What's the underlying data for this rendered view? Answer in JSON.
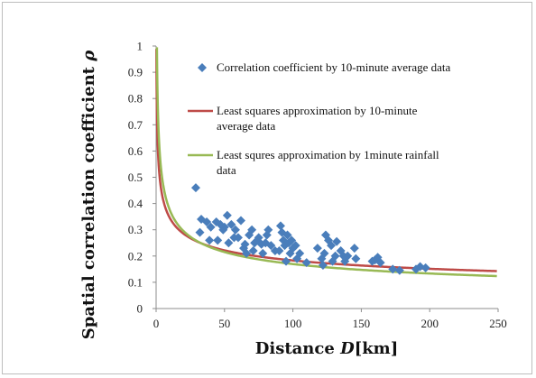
{
  "chart_data": {
    "type": "scatter",
    "xlabel_prefix": "Distance ",
    "xlabel_var": "D",
    "xlabel_unit": "[km]",
    "ylabel_prefix": "Spatial correlation coefficient ",
    "ylabel_var": "ρ",
    "xlim": [
      0,
      250
    ],
    "ylim": [
      0,
      1
    ],
    "xticks": [
      "0",
      "50",
      "100",
      "150",
      "200",
      "250"
    ],
    "yticks": [
      "0",
      "0.1",
      "0.2",
      "0.3",
      "0.4",
      "0.5",
      "0.6",
      "0.7",
      "0.8",
      "0.9",
      "1"
    ],
    "grid": false,
    "legend_position": "top-right",
    "legend": [
      {
        "marker": "diamond",
        "color": "#4a7ebb",
        "lines": [
          "Correlation coefficient by 10-minute average data"
        ]
      },
      {
        "marker": "line",
        "color": "#be4b48",
        "lines": [
          "Least squares approximation by 10-minute",
          "average data"
        ]
      },
      {
        "marker": "line",
        "color": "#98b954",
        "lines": [
          "Least squres approximation by 1minute rainfall",
          "data"
        ]
      }
    ],
    "scatter_series": {
      "name": "Correlation coefficient by 10-minute average data",
      "color": "#4a7ebb",
      "points": [
        [
          29,
          0.46
        ],
        [
          32,
          0.29
        ],
        [
          33,
          0.34
        ],
        [
          37,
          0.33
        ],
        [
          39,
          0.26
        ],
        [
          40,
          0.31
        ],
        [
          44,
          0.33
        ],
        [
          45,
          0.26
        ],
        [
          47,
          0.32
        ],
        [
          49,
          0.3
        ],
        [
          50,
          0.31
        ],
        [
          52,
          0.355
        ],
        [
          53,
          0.25
        ],
        [
          55,
          0.32
        ],
        [
          57,
          0.27
        ],
        [
          58,
          0.3
        ],
        [
          60,
          0.27
        ],
        [
          62,
          0.335
        ],
        [
          64,
          0.23
        ],
        [
          65,
          0.245
        ],
        [
          66,
          0.21
        ],
        [
          68,
          0.28
        ],
        [
          70,
          0.3
        ],
        [
          71,
          0.22
        ],
        [
          72,
          0.25
        ],
        [
          74,
          0.26
        ],
        [
          75,
          0.27
        ],
        [
          77,
          0.245
        ],
        [
          78,
          0.21
        ],
        [
          80,
          0.25
        ],
        [
          81,
          0.28
        ],
        [
          82,
          0.3
        ],
        [
          84,
          0.24
        ],
        [
          87,
          0.22
        ],
        [
          90,
          0.22
        ],
        [
          91,
          0.315
        ],
        [
          92,
          0.29
        ],
        [
          93,
          0.26
        ],
        [
          94,
          0.24
        ],
        [
          95,
          0.18
        ],
        [
          96,
          0.28
        ],
        [
          97,
          0.25
        ],
        [
          98,
          0.21
        ],
        [
          99,
          0.26
        ],
        [
          100,
          0.23
        ],
        [
          102,
          0.24
        ],
        [
          103,
          0.19
        ],
        [
          105,
          0.21
        ],
        [
          110,
          0.175
        ],
        [
          118,
          0.23
        ],
        [
          121,
          0.19
        ],
        [
          122,
          0.165
        ],
        [
          123,
          0.21
        ],
        [
          124,
          0.28
        ],
        [
          126,
          0.26
        ],
        [
          128,
          0.24
        ],
        [
          129,
          0.18
        ],
        [
          131,
          0.2
        ],
        [
          132,
          0.255
        ],
        [
          135,
          0.22
        ],
        [
          137,
          0.2
        ],
        [
          138,
          0.18
        ],
        [
          140,
          0.2
        ],
        [
          145,
          0.23
        ],
        [
          146,
          0.19
        ],
        [
          158,
          0.18
        ],
        [
          160,
          0.185
        ],
        [
          162,
          0.195
        ],
        [
          164,
          0.175
        ],
        [
          173,
          0.15
        ],
        [
          178,
          0.145
        ],
        [
          190,
          0.15
        ],
        [
          193,
          0.16
        ],
        [
          197,
          0.155
        ]
      ]
    },
    "curve_series": [
      {
        "name": "Least squares approximation by 10-minute average data",
        "color": "#be4b48",
        "model": "power",
        "a": 0.65,
        "b": -0.275
      },
      {
        "name": "Least squres approximation by 1minute rainfall data",
        "color": "#98b954",
        "model": "power",
        "a": 0.83,
        "b": -0.345
      }
    ]
  }
}
